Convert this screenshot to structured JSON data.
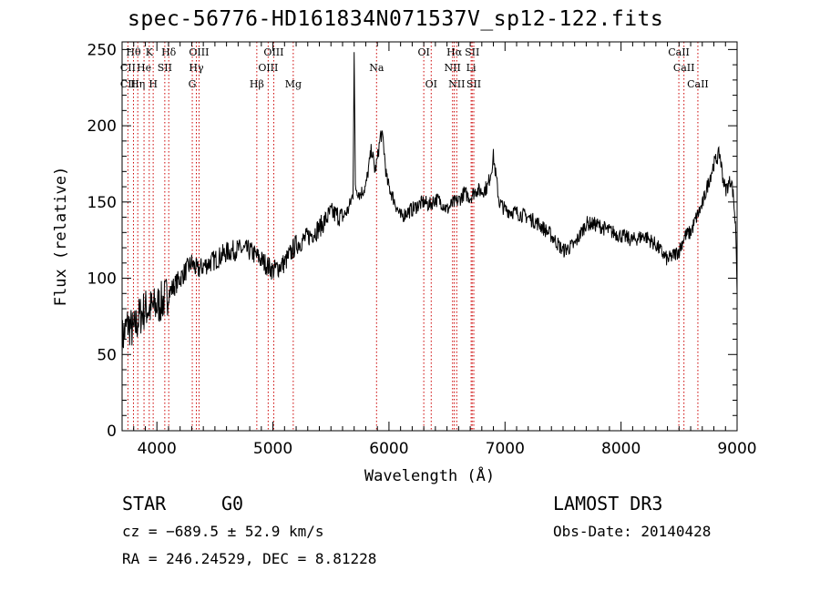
{
  "chart_data": {
    "type": "line",
    "title": "spec-56776-HD161834N071537V_sp12-122.fits",
    "xlabel": "Wavelength (Å)",
    "ylabel": "Flux (relative)",
    "xlim": [
      3700,
      9000
    ],
    "ylim": [
      0,
      255
    ],
    "xticks": [
      4000,
      5000,
      6000,
      7000,
      8000,
      9000
    ],
    "yticks": [
      0,
      50,
      100,
      150,
      200,
      250
    ],
    "series": [
      {
        "name": "spectrum",
        "x": [
          3700,
          3750,
          3800,
          3850,
          3900,
          3950,
          4000,
          4050,
          4100,
          4150,
          4200,
          4250,
          4300,
          4350,
          4400,
          4500,
          4600,
          4700,
          4800,
          4900,
          5000,
          5100,
          5200,
          5300,
          5400,
          5500,
          5600,
          5650,
          5690,
          5700,
          5710,
          5750,
          5800,
          5850,
          5880,
          5900,
          5930,
          5950,
          5980,
          6000,
          6050,
          6100,
          6150,
          6200,
          6250,
          6300,
          6350,
          6400,
          6450,
          6500,
          6550,
          6600,
          6650,
          6700,
          6750,
          6800,
          6850,
          6880,
          6900,
          6950,
          7000,
          7100,
          7200,
          7300,
          7400,
          7500,
          7600,
          7700,
          7800,
          7900,
          8000,
          8100,
          8200,
          8300,
          8400,
          8450,
          8500,
          8550,
          8600,
          8650,
          8700,
          8750,
          8800,
          8850,
          8880,
          8900,
          8950,
          8970,
          8990,
          9000
        ],
        "values": [
          60,
          70,
          65,
          75,
          80,
          80,
          82,
          85,
          90,
          95,
          100,
          105,
          110,
          105,
          108,
          112,
          117,
          119,
          118,
          112,
          105,
          110,
          122,
          127,
          133,
          143,
          140,
          145,
          155,
          250,
          160,
          155,
          160,
          185,
          170,
          178,
          195,
          190,
          165,
          160,
          150,
          140,
          143,
          145,
          148,
          150,
          148,
          152,
          150,
          145,
          149,
          151,
          156,
          153,
          158,
          157,
          160,
          170,
          180,
          150,
          145,
          143,
          140,
          135,
          128,
          118,
          122,
          136,
          135,
          131,
          128,
          125,
          128,
          122,
          112,
          115,
          118,
          128,
          130,
          140,
          148,
          162,
          175,
          182,
          165,
          158,
          165,
          152,
          130,
          90
        ]
      }
    ],
    "line_labels": [
      {
        "text": "Hθ",
        "wl": 3798,
        "row": 0
      },
      {
        "text": "K",
        "wl": 3934,
        "row": 0
      },
      {
        "text": "Hδ",
        "wl": 4102,
        "row": 0
      },
      {
        "text": "OIII",
        "wl": 4363,
        "row": 0
      },
      {
        "text": "OIII",
        "wl": 5007,
        "row": 0
      },
      {
        "text": "OI",
        "wl": 6300,
        "row": 0
      },
      {
        "text": "Hα",
        "wl": 6563,
        "row": 0
      },
      {
        "text": "SII",
        "wl": 6717,
        "row": 0
      },
      {
        "text": "CaII",
        "wl": 8498,
        "row": 0
      },
      {
        "text": "CII",
        "wl": 3750,
        "row": 1
      },
      {
        "text": "He",
        "wl": 3889,
        "row": 1
      },
      {
        "text": "SII",
        "wl": 4068,
        "row": 1
      },
      {
        "text": "Hγ",
        "wl": 4340,
        "row": 1
      },
      {
        "text": "OIII",
        "wl": 4959,
        "row": 1
      },
      {
        "text": "Na",
        "wl": 5893,
        "row": 1
      },
      {
        "text": "NII",
        "wl": 6548,
        "row": 1
      },
      {
        "text": "Li",
        "wl": 6708,
        "row": 1
      },
      {
        "text": "CaII",
        "wl": 8542,
        "row": 1
      },
      {
        "text": "CII",
        "wl": 3750,
        "row": 2
      },
      {
        "text": "Hη",
        "wl": 3835,
        "row": 2
      },
      {
        "text": "H",
        "wl": 3968,
        "row": 2
      },
      {
        "text": "G",
        "wl": 4305,
        "row": 2
      },
      {
        "text": "Hβ",
        "wl": 4861,
        "row": 2
      },
      {
        "text": "Mg",
        "wl": 5175,
        "row": 2
      },
      {
        "text": "OI",
        "wl": 6364,
        "row": 2
      },
      {
        "text": "NII",
        "wl": 6584,
        "row": 2
      },
      {
        "text": "SII",
        "wl": 6731,
        "row": 2
      },
      {
        "text": "CaII",
        "wl": 8662,
        "row": 2
      }
    ],
    "line_positions": [
      3750,
      3798,
      3835,
      3889,
      3934,
      3968,
      4068,
      4102,
      4305,
      4340,
      4363,
      4861,
      4959,
      5007,
      5175,
      5893,
      6300,
      6364,
      6548,
      6563,
      6584,
      6708,
      6717,
      6731,
      8498,
      8542,
      8662
    ]
  },
  "info": {
    "object_type": "STAR",
    "subclass": "G0",
    "survey": "LAMOST DR3",
    "cz": "cz = −689.5 ± 52.9 km/s",
    "obs_date": "Obs-Date: 20140428",
    "coords": "RA = 246.24529, DEC =   8.81228"
  },
  "colors": {
    "spectrum": "#000000",
    "line_markers": "#cc0000",
    "axis": "#000000"
  }
}
